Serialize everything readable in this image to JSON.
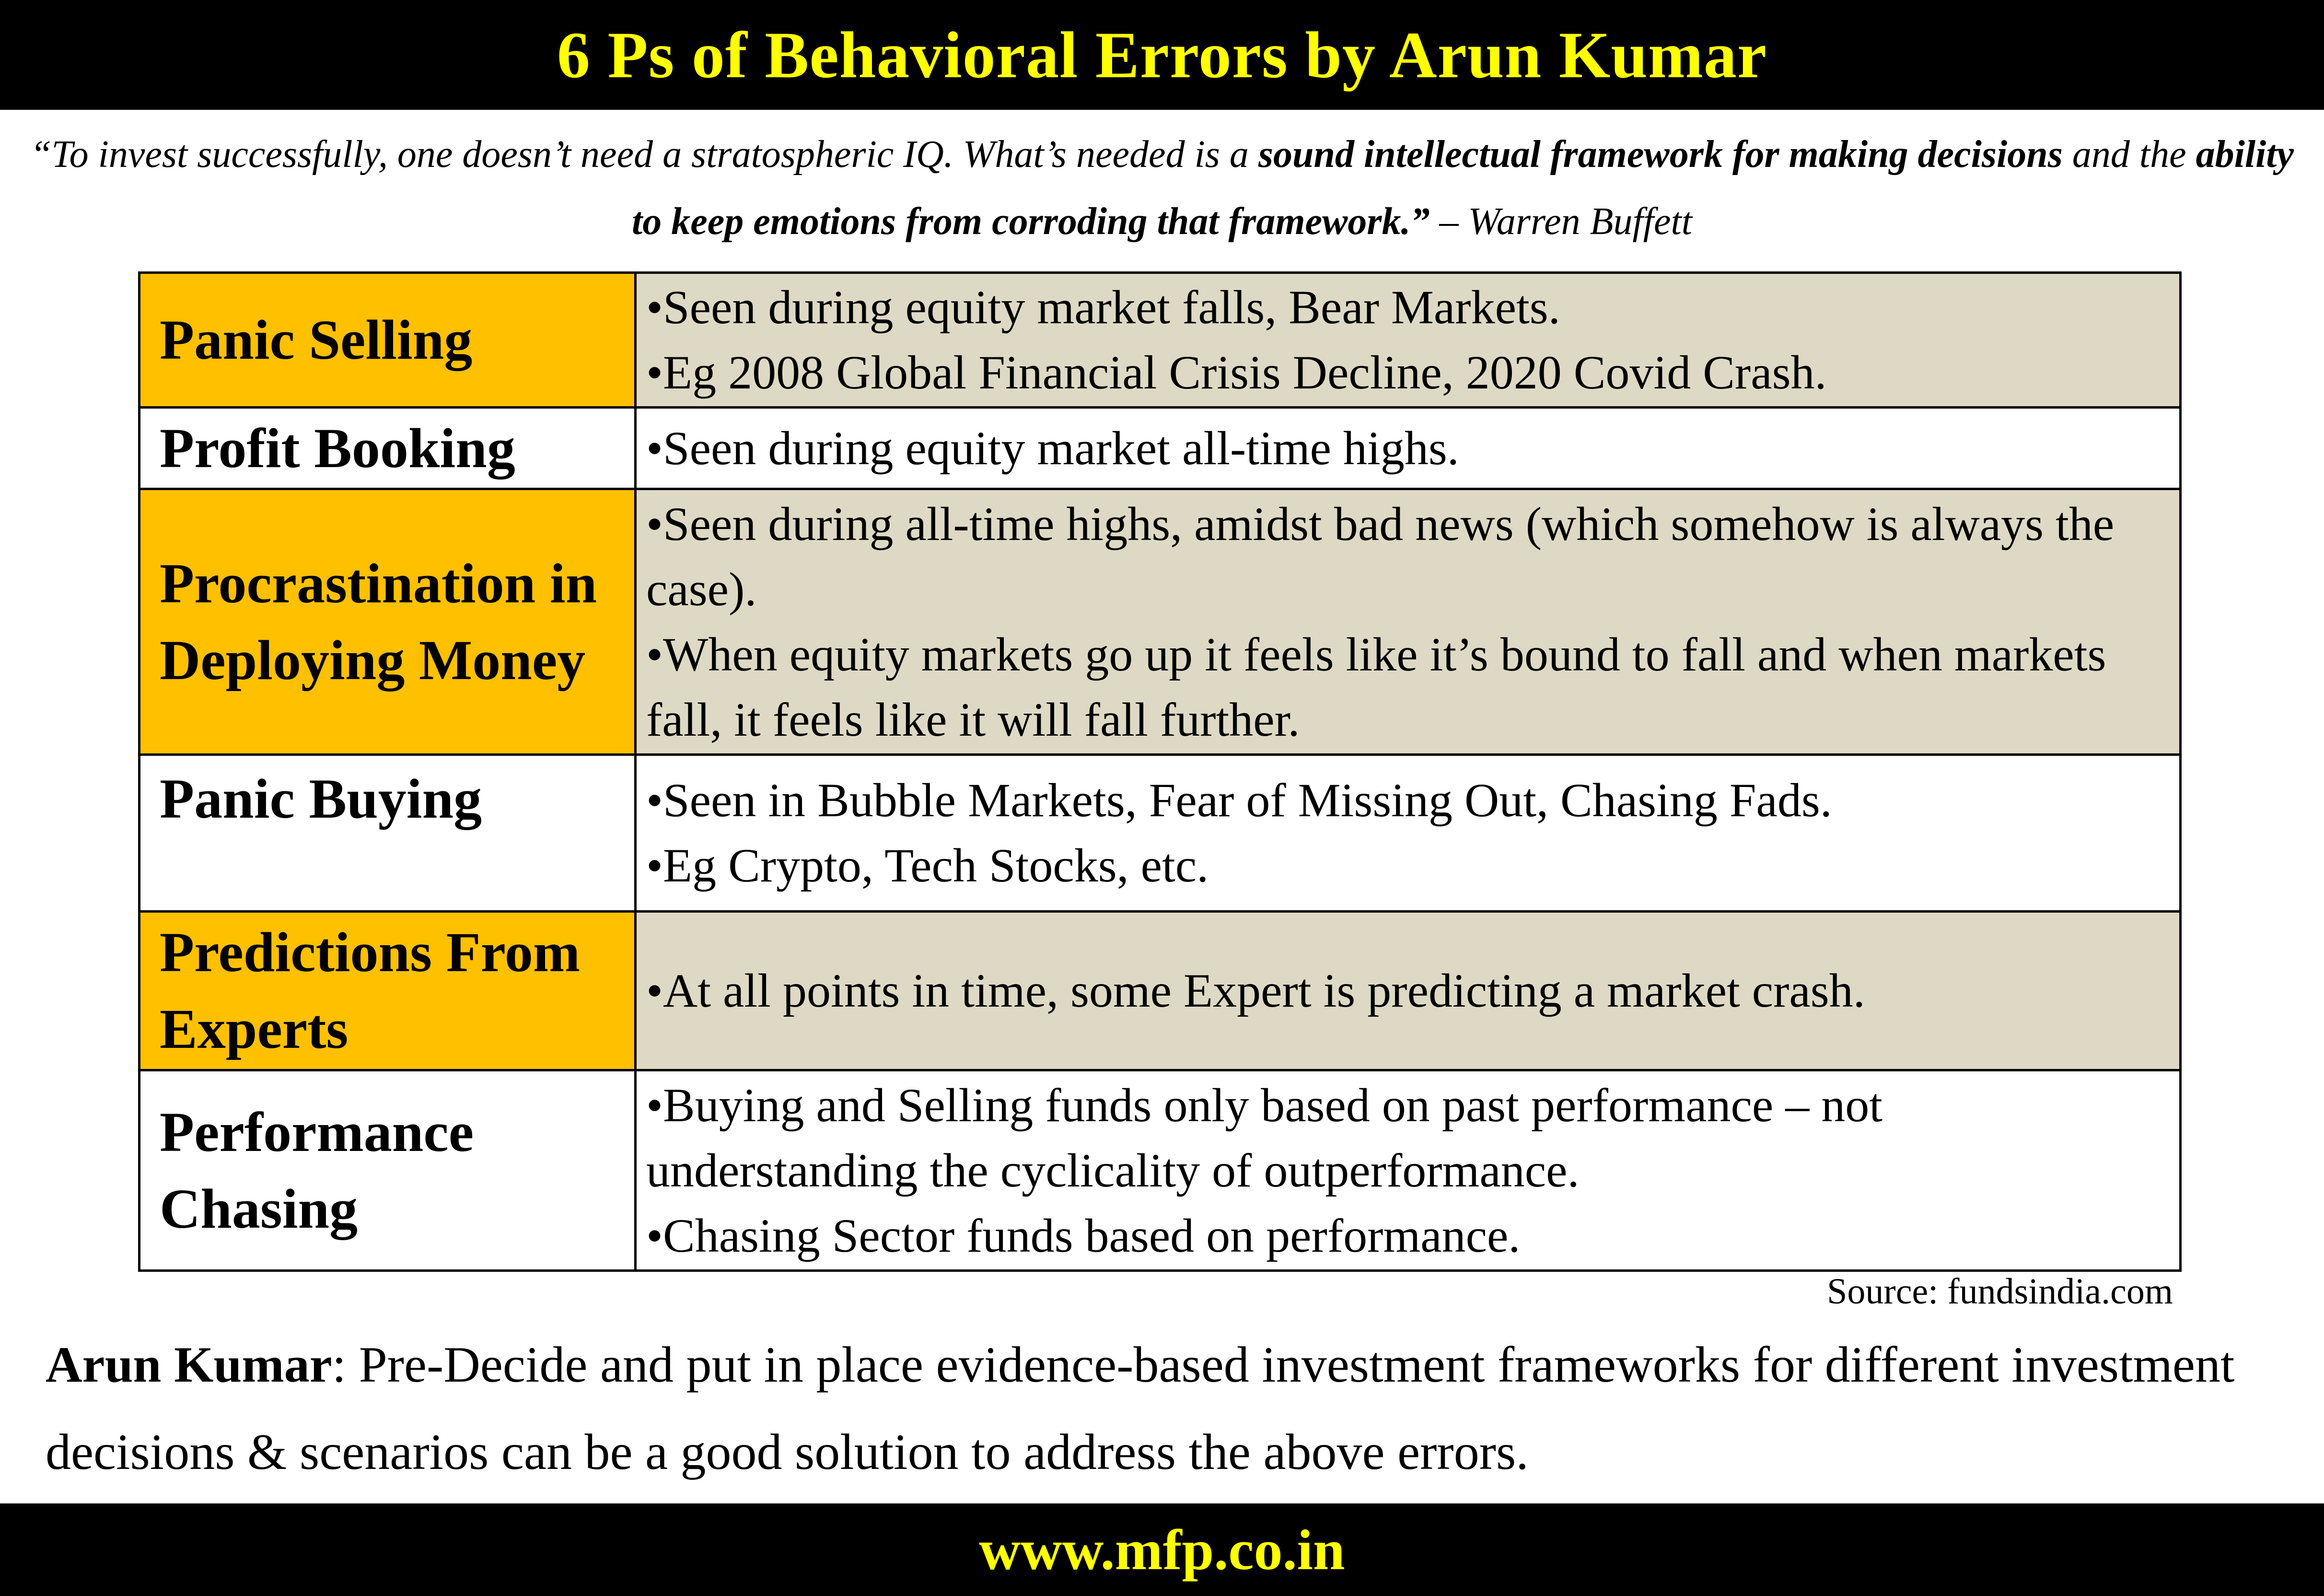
{
  "title": "6 Ps of Behavioral Errors by Arun Kumar",
  "quote": {
    "part1": "“To invest successfully, one doesn’t need a stratospheric IQ. What’s needed is a ",
    "bold1": "sound intellectual framework for making decisions",
    "part2": " and the ",
    "bold2": "ability to keep emotions from corroding that framework.”",
    "attribution": "  – Warren Buffett"
  },
  "colors": {
    "highlight": "#FFC000",
    "detail_bg": "#DDD9C4",
    "title_text": "#FFFF00",
    "bar_bg": "#000000"
  },
  "rows": [
    {
      "name": "Panic Selling",
      "points": [
        "•Seen during equity market falls, Bear Markets.",
        "•Eg 2008 Global Financial Crisis Decline, 2020 Covid Crash."
      ]
    },
    {
      "name": "Profit Booking",
      "points": [
        "•Seen during equity market all-time highs."
      ]
    },
    {
      "name": "Procrastination in Deploying Money",
      "points": [
        "•Seen during all-time highs, amidst bad news (which somehow is always the case).",
        "•When equity markets go up it feels like it’s bound to fall and when markets fall, it feels like it will fall further."
      ]
    },
    {
      "name": "Panic Buying",
      "points": [
        "•Seen in Bubble Markets, Fear of Missing Out, Chasing Fads.",
        "•Eg Crypto, Tech Stocks, etc."
      ]
    },
    {
      "name": "Predictions From Experts",
      "points": [
        "•At all points in time, some Expert is predicting a market crash."
      ]
    },
    {
      "name": "Performance Chasing",
      "points": [
        "•Buying and Selling funds only based on past performance – not understanding the cyclicality of outperformance.",
        "•Chasing Sector funds based on performance."
      ]
    }
  ],
  "source": "Source: fundsindia.com",
  "note": {
    "author": "Arun Kumar",
    "text": ": Pre-Decide and put in place evidence-based investment frameworks for different investment decisions & scenarios can be a good solution to address the above errors."
  },
  "footer": "www.mfp.co.in"
}
